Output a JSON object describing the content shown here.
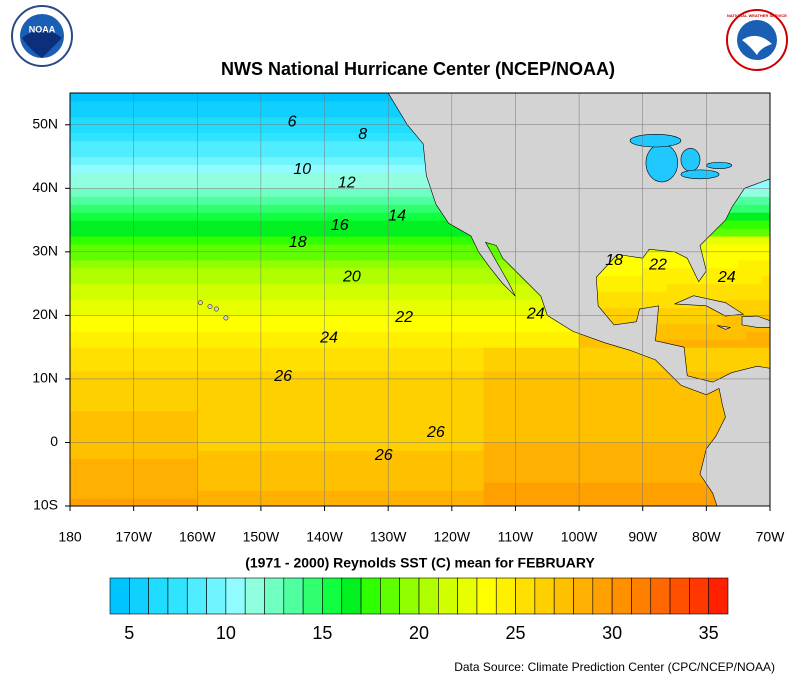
{
  "title": "NWS National Hurricane Center (NCEP/NOAA)",
  "logos": {
    "left": "NOAA",
    "right": "NATIONAL WEATHER SERVICE"
  },
  "map": {
    "xlim": [
      -180,
      -70
    ],
    "ylim": [
      -10,
      55
    ],
    "grid": true,
    "land_color": "#d3d3d3",
    "xticks": [
      {
        "value": -180,
        "label": "180"
      },
      {
        "value": -170,
        "label": "170W"
      },
      {
        "value": -160,
        "label": "160W"
      },
      {
        "value": -150,
        "label": "150W"
      },
      {
        "value": -140,
        "label": "140W"
      },
      {
        "value": -130,
        "label": "130W"
      },
      {
        "value": -120,
        "label": "120W"
      },
      {
        "value": -110,
        "label": "110W"
      },
      {
        "value": -100,
        "label": "100W"
      },
      {
        "value": -90,
        "label": "90W"
      },
      {
        "value": -80,
        "label": "80W"
      },
      {
        "value": -70,
        "label": "70W"
      }
    ],
    "yticks": [
      {
        "value": 50,
        "label": "50N"
      },
      {
        "value": 40,
        "label": "40N"
      },
      {
        "value": 30,
        "label": "30N"
      },
      {
        "value": 20,
        "label": "20N"
      },
      {
        "value": 10,
        "label": "10N"
      },
      0,
      {
        "value": -10,
        "label": "10S"
      }
    ],
    "contour_labels": [
      {
        "value": 6,
        "lon": -145.1,
        "lat": 50.4
      },
      {
        "value": 8,
        "lon": -134.0,
        "lat": 48.4
      },
      {
        "value": 10,
        "lon": -143.5,
        "lat": 42.9
      },
      {
        "value": 12,
        "lon": -136.5,
        "lat": 40.8
      },
      {
        "value": 14,
        "lon": -128.6,
        "lat": 35.6
      },
      {
        "value": 16,
        "lon": -137.6,
        "lat": 34.1
      },
      {
        "value": 18,
        "lon": -144.2,
        "lat": 31.4
      },
      {
        "value": 20,
        "lon": -135.7,
        "lat": 26.0
      },
      {
        "value": 22,
        "lon": -127.5,
        "lat": 19.6
      },
      {
        "value": 24,
        "lon": -139.3,
        "lat": 16.4
      },
      {
        "value": 26,
        "lon": -146.5,
        "lat": 10.3
      },
      {
        "value": 26,
        "lon": -122.5,
        "lat": 1.5
      },
      {
        "value": 26,
        "lon": -130.7,
        "lat": -2.1
      },
      {
        "value": 24,
        "lon": -106.8,
        "lat": 20.2
      },
      {
        "value": 18,
        "lon": -94.5,
        "lat": 28.6
      },
      {
        "value": 22,
        "lon": -87.6,
        "lat": 27.9
      },
      {
        "value": 24,
        "lon": -76.8,
        "lat": 25.9
      }
    ]
  },
  "subtitle": "(1971 - 2000) Reynolds SST (C) mean for FEBRUARY",
  "colorbar": {
    "range": [
      4,
      36
    ],
    "ticks": [
      5,
      10,
      15,
      20,
      25,
      30,
      35
    ],
    "colors": [
      "#00c4ff",
      "#10d0ff",
      "#20dcff",
      "#30e4ff",
      "#50ecff",
      "#70f4ff",
      "#90fcff",
      "#90ffe0",
      "#70ffc0",
      "#50ffa0",
      "#30ff70",
      "#10ff40",
      "#00f020",
      "#30ff00",
      "#60ff00",
      "#90ff00",
      "#b0ff00",
      "#d0ff00",
      "#e8ff00",
      "#ffff00",
      "#fff000",
      "#ffe000",
      "#ffd000",
      "#ffc000",
      "#ffb000",
      "#ffa000",
      "#ff9000",
      "#ff8000",
      "#ff6800",
      "#ff5000",
      "#ff3800",
      "#ff2000"
    ]
  },
  "source": "Data Source: Climate Prediction Center (CPC/NCEP/NOAA)"
}
